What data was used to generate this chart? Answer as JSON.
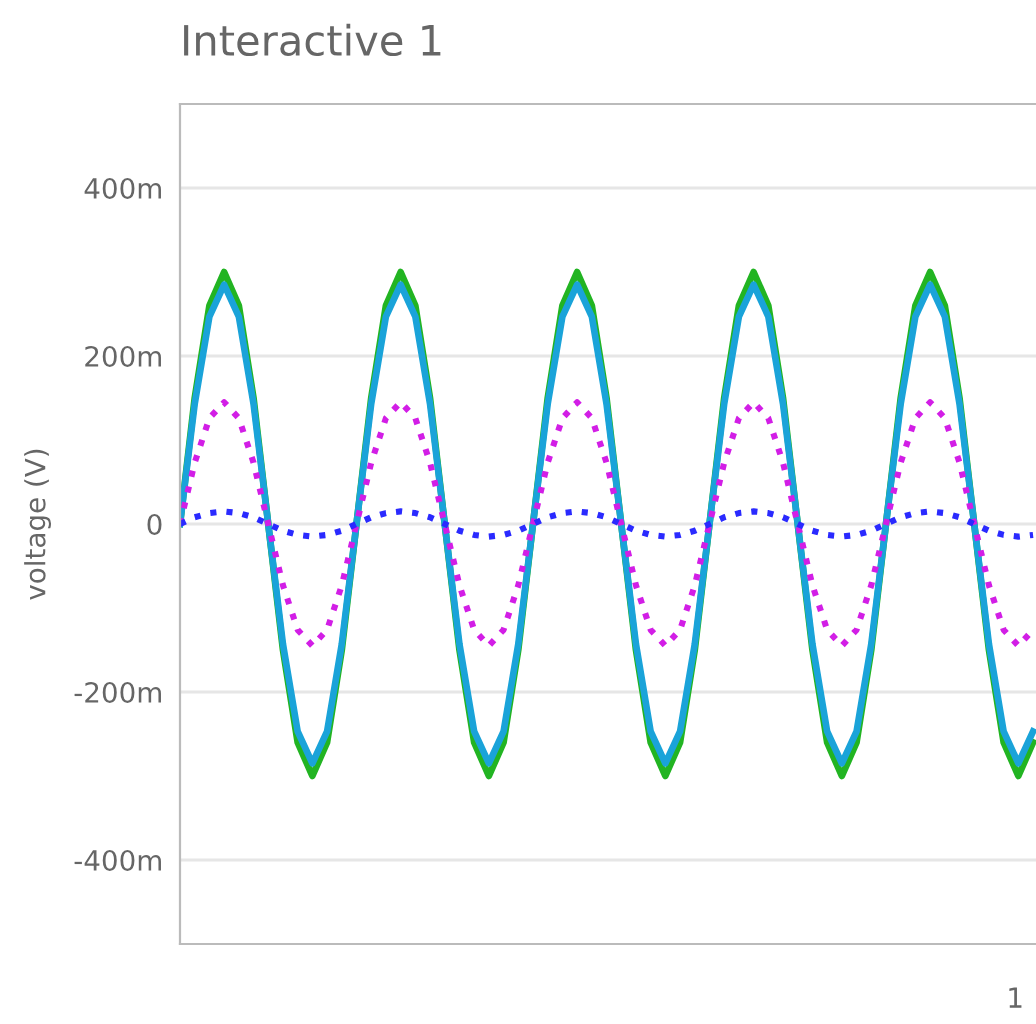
{
  "chart_data": {
    "type": "line",
    "title": "Interactive 1",
    "ylabel": "voltage (V)",
    "annotations": [
      "1"
    ],
    "categories": [
      null,
      null,
      null,
      null,
      null,
      null,
      null,
      null,
      null,
      null,
      null,
      null,
      null,
      null,
      null,
      null,
      null,
      null,
      null,
      null,
      null,
      null,
      null,
      null,
      null,
      null,
      null,
      null,
      null,
      null,
      null,
      null,
      null,
      null,
      null,
      null,
      null,
      null,
      null,
      null,
      null,
      null,
      null,
      null,
      null,
      null,
      null,
      null,
      null,
      null,
      null,
      null,
      null,
      null,
      null,
      null,
      null,
      null,
      null
    ],
    "series": [
      {
        "color": "#22b422",
        "line_style": "solid",
        "values": [
          0,
          150,
          260,
          300,
          260,
          150,
          0,
          -150,
          -260,
          -300,
          -260,
          -150,
          0,
          150,
          260,
          300,
          260,
          150,
          0,
          -150,
          -260,
          -300,
          -260,
          -150,
          0,
          150,
          260,
          300,
          260,
          150,
          0,
          -150,
          -260,
          -300,
          -260,
          -150,
          0,
          150,
          260,
          300,
          260,
          150,
          0,
          -150,
          -260,
          -300,
          -260,
          -150,
          0,
          150,
          260,
          300,
          260,
          150,
          0,
          -150,
          -260,
          -300,
          -260
        ]
      },
      {
        "color": "#1aa3d9",
        "line_style": "solid",
        "values": [
          0,
          143,
          247,
          285,
          247,
          143,
          0,
          -143,
          -247,
          -285,
          -247,
          -143,
          0,
          143,
          247,
          285,
          247,
          143,
          0,
          -143,
          -247,
          -285,
          -247,
          -143,
          0,
          143,
          247,
          285,
          247,
          143,
          0,
          -143,
          -247,
          -285,
          -247,
          -143,
          0,
          143,
          247,
          285,
          247,
          143,
          0,
          -143,
          -247,
          -285,
          -247,
          -143,
          0,
          143,
          247,
          285,
          247,
          143,
          0,
          -143,
          -247,
          -285,
          -247
        ]
      },
      {
        "color": "#d21ee6",
        "line_style": "dotted",
        "values": [
          0,
          73,
          126,
          145,
          126,
          73,
          0,
          -73,
          -126,
          -145,
          -126,
          -73,
          0,
          73,
          126,
          145,
          126,
          73,
          0,
          -73,
          -126,
          -145,
          -126,
          -73,
          0,
          73,
          126,
          145,
          126,
          73,
          0,
          -73,
          -126,
          -145,
          -126,
          -73,
          0,
          73,
          126,
          145,
          126,
          73,
          0,
          -73,
          -126,
          -145,
          -126,
          -73,
          0,
          73,
          126,
          145,
          126,
          73,
          0,
          -73,
          -126,
          -145,
          -126
        ]
      },
      {
        "color": "#2a2aff",
        "line_style": "dotted",
        "values": [
          0,
          8,
          13,
          15,
          13,
          8,
          0,
          -8,
          -13,
          -15,
          -13,
          -8,
          0,
          8,
          13,
          15,
          13,
          8,
          0,
          -8,
          -13,
          -15,
          -13,
          -8,
          0,
          8,
          13,
          15,
          13,
          8,
          0,
          -8,
          -13,
          -15,
          -13,
          -8,
          0,
          8,
          13,
          15,
          13,
          8,
          0,
          -8,
          -13,
          -15,
          -13,
          -8,
          0,
          8,
          13,
          15,
          13,
          8,
          0,
          -8,
          -13,
          -15,
          -13
        ]
      }
    ],
    "ylim": [
      -500,
      500
    ],
    "yticks": [
      {
        "value": -400,
        "label": "-400m"
      },
      {
        "value": -200,
        "label": "-200m"
      },
      0,
      {
        "value": 200,
        "label": "200m"
      },
      {
        "value": 400,
        "label": "400m"
      }
    ],
    "grid": "y",
    "tick_labels": "y",
    "legend": false,
    "marker": "none"
  }
}
